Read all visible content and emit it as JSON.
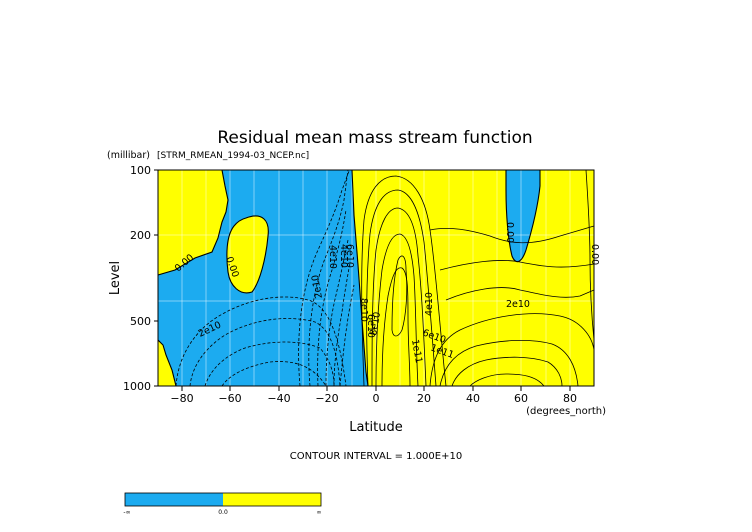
{
  "chart_data": {
    "type": "contour",
    "title": "Residual mean mass stream function",
    "subtitle": "[STRM_RMEAN_1994-03_NCEP.nc]",
    "y_unit": "(millibar)",
    "x_unit": "(degrees_north)",
    "xlabel": "Latitude",
    "ylabel": "Level",
    "xlim": [
      -90,
      90
    ],
    "ylim": [
      1000,
      100
    ],
    "y_scale": "log",
    "x_ticks": [
      -80,
      -60,
      -40,
      -20,
      0,
      20,
      40,
      60,
      80
    ],
    "x_tick_labels": [
      "−80",
      "−60",
      "−40",
      "−20",
      "0",
      "20",
      "40",
      "60",
      "80"
    ],
    "y_ticks": [
      100,
      200,
      500,
      1000
    ],
    "y_tick_labels": [
      "100",
      "200",
      "500",
      "1000"
    ],
    "grid": true,
    "contour_interval_text": "CONTOUR INTERVAL = 1.000E+10",
    "contour_labels": [
      "0.00",
      "0.00",
      "0.00",
      "0.00",
      "2e10",
      "2e10",
      "4e10",
      "4e10",
      "6e10",
      "8e10",
      "6e10",
      "8e10",
      "1e11",
      "2e10",
      "4e10",
      "6e10",
      "1e11"
    ],
    "colors": {
      "negative": "#1cabf0",
      "positive": "#ffff00",
      "contour_line": "#000000"
    },
    "colorbar": {
      "labels": [
        "-∞",
        "0.0",
        "∞"
      ],
      "colors": [
        "#1cabf0",
        "#ffff00"
      ]
    }
  }
}
